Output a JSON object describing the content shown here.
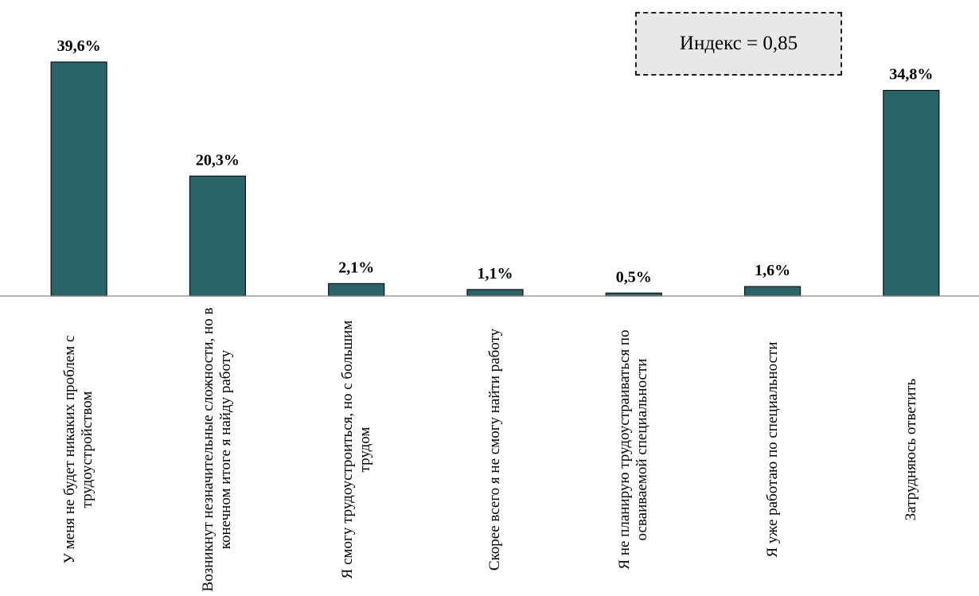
{
  "chart_data": {
    "type": "bar",
    "categories": [
      "У меня не будет никаких проблем с трудоустройством",
      "Возникнут незначительные сложности, но в конечном итоге я найду работу",
      "Я смогу трудоустроиться, но с большим трудом",
      "Скорее всего я не смогу найти работу",
      "Я не планирую трудоустраиваться по осваиваемой специальности",
      "Я уже работаю по специальности",
      "Затрудняюсь ответить"
    ],
    "values": [
      39.6,
      20.3,
      2.1,
      1.1,
      0.5,
      1.6,
      34.8
    ],
    "value_labels": [
      "39,6%",
      "20,3%",
      "2,1%",
      "1,1%",
      "0,5%",
      "1,6%",
      "34,8%"
    ],
    "color": "#2a6468",
    "ylim": [
      0,
      40
    ],
    "annotation": "Индекс = 0,85"
  }
}
